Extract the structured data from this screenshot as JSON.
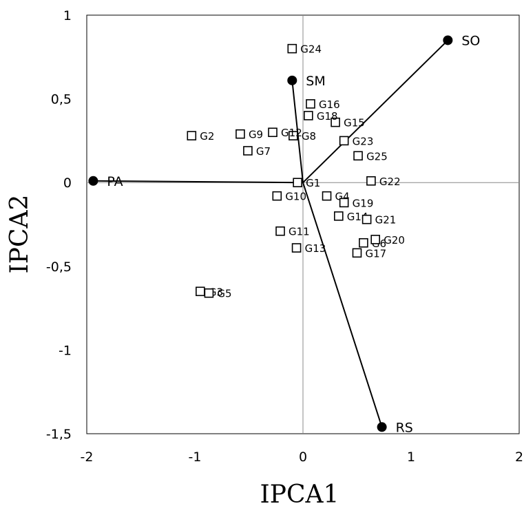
{
  "chart_data": {
    "type": "scatter",
    "title": "",
    "xlabel": "IPCA1",
    "ylabel": "IPCA2",
    "xlim": [
      -2,
      2
    ],
    "ylim": [
      -1.5,
      1
    ],
    "grid": false,
    "x_ticks": [
      "-2",
      "-1",
      "0",
      "1",
      "2"
    ],
    "y_ticks": [
      "1",
      "0,5",
      "0",
      "-0,5",
      "-1",
      "-1,5"
    ],
    "genotypes": [
      {
        "label": "G1",
        "x": -0.05,
        "y": 0.0
      },
      {
        "label": "G2",
        "x": -1.03,
        "y": 0.28
      },
      {
        "label": "G3",
        "x": -0.95,
        "y": -0.65
      },
      {
        "label": "G4",
        "x": 0.22,
        "y": -0.08
      },
      {
        "label": "G5",
        "x": -0.87,
        "y": -0.66
      },
      {
        "label": "G6",
        "x": 0.56,
        "y": -0.36
      },
      {
        "label": "G7",
        "x": -0.51,
        "y": 0.19
      },
      {
        "label": "G8",
        "x": -0.09,
        "y": 0.28
      },
      {
        "label": "G9",
        "x": -0.58,
        "y": 0.29
      },
      {
        "label": "G10",
        "x": -0.24,
        "y": -0.08
      },
      {
        "label": "G11",
        "x": -0.21,
        "y": -0.29
      },
      {
        "label": "G12",
        "x": -0.28,
        "y": 0.3
      },
      {
        "label": "G13",
        "x": -0.06,
        "y": -0.39
      },
      {
        "label": "G14",
        "x": 0.33,
        "y": -0.2
      },
      {
        "label": "G15",
        "x": 0.3,
        "y": 0.36
      },
      {
        "label": "G16",
        "x": 0.07,
        "y": 0.47
      },
      {
        "label": "G17",
        "x": 0.5,
        "y": -0.42
      },
      {
        "label": "G18",
        "x": 0.05,
        "y": 0.4
      },
      {
        "label": "G19",
        "x": 0.38,
        "y": -0.12
      },
      {
        "label": "G20",
        "x": 0.67,
        "y": -0.34
      },
      {
        "label": "G21",
        "x": 0.59,
        "y": -0.22
      },
      {
        "label": "G22",
        "x": 0.63,
        "y": 0.01
      },
      {
        "label": "G23",
        "x": 0.38,
        "y": 0.25
      },
      {
        "label": "G24",
        "x": -0.1,
        "y": 0.8
      },
      {
        "label": "G25",
        "x": 0.51,
        "y": 0.16
      }
    ],
    "environments": [
      {
        "label": "SO",
        "x": 1.34,
        "y": 0.85
      },
      {
        "label": "SM",
        "x": -0.1,
        "y": 0.61
      },
      {
        "label": "PA",
        "x": -1.94,
        "y": 0.01
      },
      {
        "label": "RS",
        "x": 0.73,
        "y": -1.46
      }
    ]
  }
}
